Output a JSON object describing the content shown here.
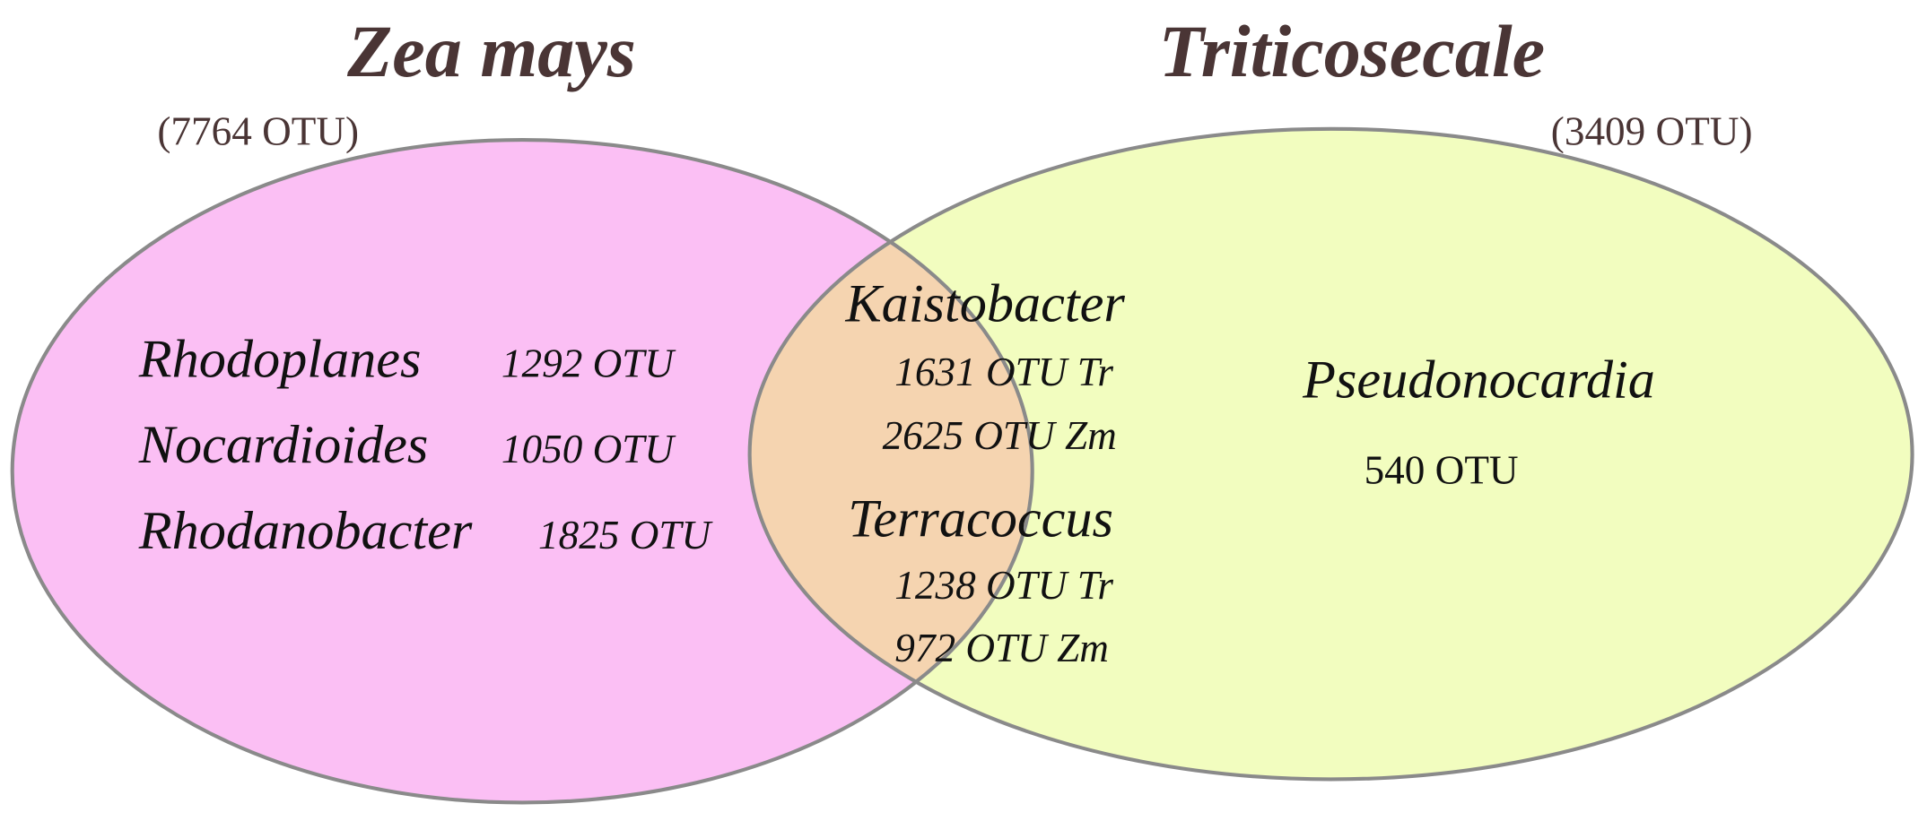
{
  "sets": [
    {
      "title": "Zea mays",
      "count": "(7764 OTU)",
      "genera": [
        {
          "name": "Rhodoplanes",
          "count": "1292 OTU"
        },
        {
          "name": "Nocardioides",
          "count": "1050 OTU"
        },
        {
          "name": "Rhodanobacter",
          "count": "1825 OTU"
        }
      ]
    },
    {
      "title": "Triticosecale",
      "count": "(3409 OTU)",
      "genera": [
        {
          "name": "Pseudonocardia",
          "count": "540 OTU"
        }
      ]
    }
  ],
  "intersection": {
    "genera": [
      {
        "name": "Kaistobacter",
        "counts": [
          "1631 OTU Tr",
          "2625 OTU Zm"
        ]
      },
      {
        "name": "Terracoccus",
        "counts": [
          "1238 OTU Tr",
          "972 OTU Zm"
        ]
      }
    ]
  }
}
